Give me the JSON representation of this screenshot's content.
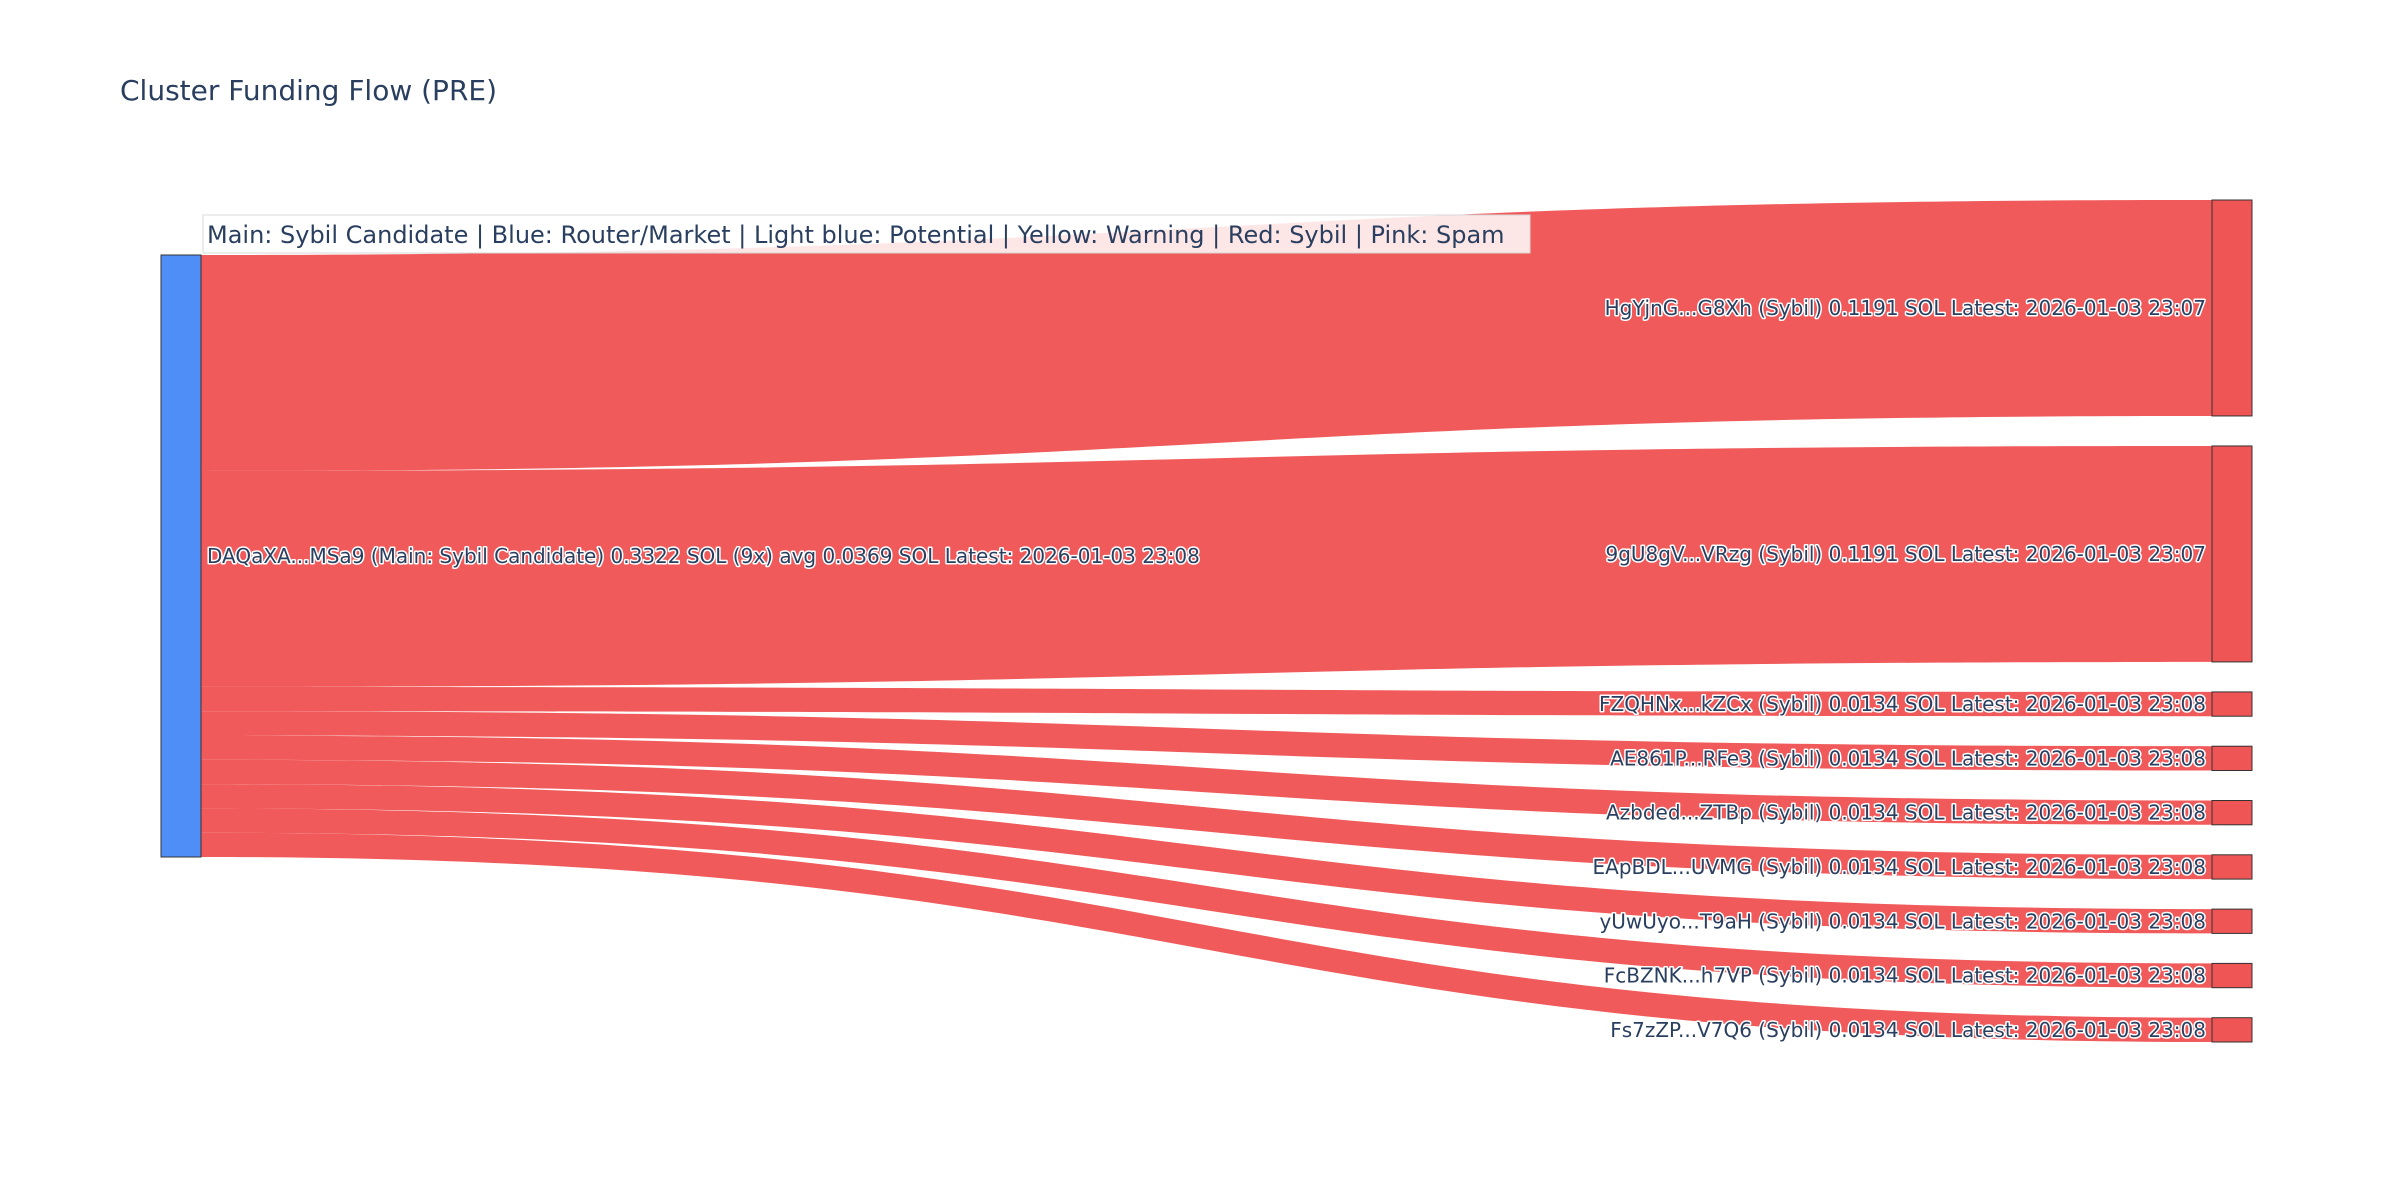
{
  "chart_data": {
    "type": "sankey",
    "title": "Cluster Funding Flow (PRE)",
    "legend_text": "Main: Sybil Candidate  |  Blue: Router/Market | Light blue: Potential | Yellow: Warning | Red: Sybil | Pink: Spam",
    "colors": {
      "source_node": "#4f8ef7",
      "target_node": "#ef5555",
      "link": "#ef5555",
      "node_border": "#333333",
      "text": "#2a3f5f"
    },
    "source": {
      "label": "DAQaXA...MSa9 (Main: Sybil Candidate) 0.3322 SOL (9x) avg 0.0369 SOL Latest: 2026-01-03 23:08",
      "total": 0.3322
    },
    "targets": [
      {
        "label": "HgYjnG...G8Xh (Sybil) 0.1191 SOL Latest: 2026-01-03 23:07",
        "value": 0.1191
      },
      {
        "label": "9gU8gV...VRzg (Sybil) 0.1191 SOL Latest: 2026-01-03 23:07",
        "value": 0.1191
      },
      {
        "label": "FZQHNx...kZCx (Sybil) 0.0134 SOL Latest: 2026-01-03 23:08",
        "value": 0.0134
      },
      {
        "label": "AE861P...RFe3 (Sybil) 0.0134 SOL Latest: 2026-01-03 23:08",
        "value": 0.0134
      },
      {
        "label": "Azbded...ZTBp (Sybil) 0.0134 SOL Latest: 2026-01-03 23:08",
        "value": 0.0134
      },
      {
        "label": "EApBDL...UVMG (Sybil) 0.0134 SOL Latest: 2026-01-03 23:08",
        "value": 0.0134
      },
      {
        "label": "yUwUyo...T9aH (Sybil) 0.0134 SOL Latest: 2026-01-03 23:08",
        "value": 0.0134
      },
      {
        "label": "FcBZNK...h7VP (Sybil) 0.0134 SOL Latest: 2026-01-03 23:08",
        "value": 0.0134
      },
      {
        "label": "Fs7zZP...V7Q6 (Sybil) 0.0134 SOL Latest: 2026-01-03 23:08",
        "value": 0.0134
      }
    ]
  }
}
